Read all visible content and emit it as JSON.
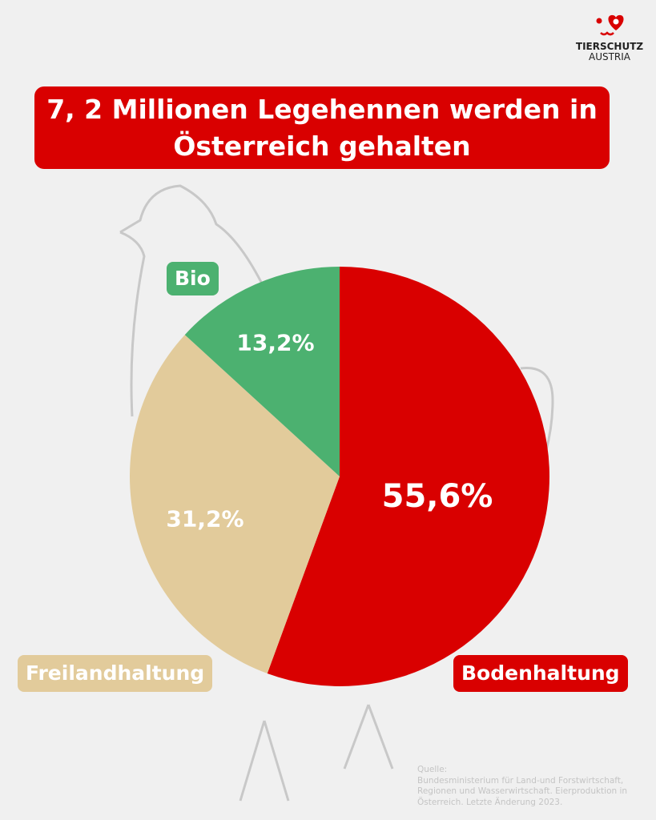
{
  "logo": {
    "line1": "TIERSCHUTZ",
    "line2": "AUSTRIA"
  },
  "chart_data": {
    "type": "pie",
    "title_lines": [
      "7, 2 Millionen Legehennen werden in",
      "Österreich gehalten"
    ],
    "slices": [
      {
        "label": "Bodenhaltung",
        "value": 55.6,
        "display": "55,6%",
        "color": "#d90000"
      },
      {
        "label": "Freilandhaltung",
        "value": 31.2,
        "display": "31,2%",
        "color": "#e2cb9b"
      },
      {
        "label": "Bio",
        "value": 13.2,
        "display": "13,2%",
        "color": "#4cb170"
      }
    ],
    "start": "top",
    "direction": "clockwise"
  },
  "source": {
    "heading": "Quelle:",
    "text": "Bundesministerium für Land-und Forstwirtschaft, Regionen und Wasserwirtschaft. Eierproduktion in Österreich. Letzte Änderung 2023."
  }
}
